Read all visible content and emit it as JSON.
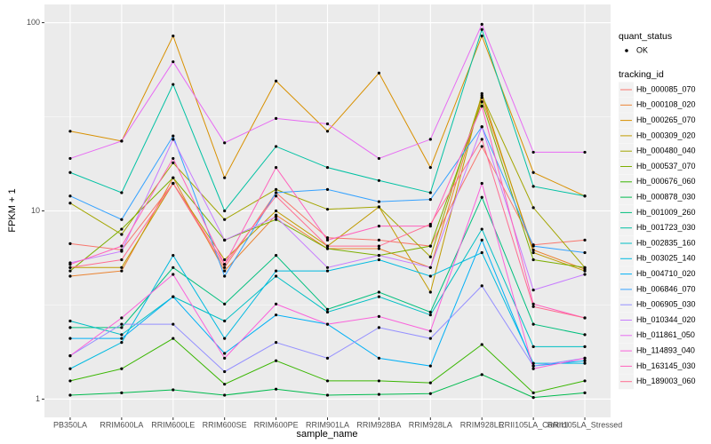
{
  "chart_data": {
    "type": "line",
    "x_label": "sample_name",
    "y_label": "FPKM + 1",
    "categories": [
      "PB350LA",
      "RRIM600LA",
      "RRIM600LE",
      "RRIM600SE",
      "RRIM600PE",
      "RRIM901LA",
      "RRIM928BA",
      "RRIM928LA",
      "RRIM928LE",
      "RRII105LA_Control",
      "RRII105LA_Stressed"
    ],
    "ylog": true,
    "ylim": [
      0.8,
      125
    ],
    "yticks": [
      1,
      10,
      100
    ],
    "grid": true,
    "point_color": "#000000",
    "point_legend": {
      "title": "quant_status",
      "labels": [
        "OK"
      ]
    },
    "legend_title": "tracking_id",
    "series": [
      {
        "name": "Hb_000085_070",
        "color": "#F8766D",
        "values": [
          6.7,
          6.2,
          14,
          5,
          12.5,
          7.2,
          7,
          6.5,
          22,
          6.6,
          7
        ]
      },
      {
        "name": "Hb_000108_020",
        "color": "#EA8331",
        "values": [
          4.5,
          4.8,
          15,
          4.8,
          9.5,
          6.3,
          6.3,
          5,
          40,
          6.2,
          4.9
        ]
      },
      {
        "name": "Hb_000265_070",
        "color": "#D89000",
        "values": [
          26.5,
          23.5,
          85,
          15,
          49,
          26.5,
          54,
          17,
          85,
          16,
          12
        ]
      },
      {
        "name": "Hb_000309_020",
        "color": "#C09B00",
        "values": [
          5,
          5,
          14,
          5.5,
          10,
          6.5,
          10.5,
          3.7,
          42,
          6,
          4.8
        ]
      },
      {
        "name": "Hb_000480_040",
        "color": "#A3A500",
        "values": [
          11,
          7.5,
          18,
          9,
          13,
          10.2,
          10.5,
          5.7,
          41,
          10.4,
          5
        ]
      },
      {
        "name": "Hb_000537_070",
        "color": "#7CAE00",
        "values": [
          4.8,
          8,
          15,
          7,
          9,
          6.3,
          5.8,
          6.5,
          38,
          5.5,
          5
        ]
      },
      {
        "name": "Hb_000676_060",
        "color": "#39B600",
        "values": [
          1.25,
          1.45,
          2.1,
          1.2,
          1.6,
          1.25,
          1.25,
          1.22,
          1.95,
          1.08,
          1.25
        ]
      },
      {
        "name": "Hb_000878_030",
        "color": "#00BB4E",
        "values": [
          1.05,
          1.08,
          1.12,
          1.05,
          1.13,
          1.05,
          1.06,
          1.07,
          1.35,
          1.02,
          1.08
        ]
      },
      {
        "name": "Hb_001009_260",
        "color": "#00BF7D",
        "values": [
          2.4,
          2.4,
          5,
          3.2,
          5.8,
          3,
          3.7,
          2.9,
          11.8,
          2.5,
          2.2
        ]
      },
      {
        "name": "Hb_001723_030",
        "color": "#00C1A3",
        "values": [
          16,
          12.5,
          47,
          10,
          22,
          17,
          14.5,
          12.5,
          92,
          13.5,
          12
        ]
      },
      {
        "name": "Hb_002835_160",
        "color": "#00BFC4",
        "values": [
          2.6,
          2.2,
          3.5,
          2.6,
          4.5,
          2.9,
          3.5,
          2.8,
          8,
          1.9,
          1.9
        ]
      },
      {
        "name": "Hb_003025_140",
        "color": "#00BAE0",
        "values": [
          1.45,
          2,
          5.8,
          2.1,
          4.8,
          4.8,
          5.5,
          4.5,
          6,
          1.55,
          1.55
        ]
      },
      {
        "name": "Hb_004710_020",
        "color": "#00B0F6",
        "values": [
          2.1,
          2.1,
          3.5,
          1.75,
          2.8,
          2.5,
          1.65,
          1.5,
          7,
          1.5,
          1.6
        ]
      },
      {
        "name": "Hb_006846_070",
        "color": "#35A2FF",
        "values": [
          12,
          9,
          25,
          4.5,
          12.5,
          13,
          11.2,
          11.5,
          28,
          6.5,
          6
        ]
      },
      {
        "name": "Hb_006905_030",
        "color": "#9590FF",
        "values": [
          1.7,
          2.5,
          2.5,
          1.4,
          2,
          1.65,
          2.4,
          2.1,
          4,
          1.5,
          1.65
        ]
      },
      {
        "name": "Hb_010344_020",
        "color": "#C77CFF",
        "values": [
          5.3,
          6.1,
          24,
          7,
          9.3,
          5,
          5.8,
          5,
          28,
          3.8,
          4.6
        ]
      },
      {
        "name": "Hb_011861_050",
        "color": "#E76BF3",
        "values": [
          19,
          23.5,
          62,
          23,
          31,
          29,
          19,
          24,
          98,
          20.5,
          20.5
        ]
      },
      {
        "name": "Hb_114893_040",
        "color": "#FA62DB",
        "values": [
          1.7,
          2.7,
          4.6,
          1.65,
          3.2,
          2.5,
          2.75,
          2.3,
          14,
          1.45,
          1.65
        ]
      },
      {
        "name": "Hb_163145_030",
        "color": "#FF62BC",
        "values": [
          5.2,
          6.5,
          19,
          5.2,
          17,
          7,
          8.3,
          8.3,
          36,
          3.2,
          2.7
        ]
      },
      {
        "name": "Hb_189003_060",
        "color": "#FF6C91",
        "values": [
          5,
          5.5,
          14,
          5.2,
          12,
          6.5,
          6.5,
          8.5,
          24,
          3.1,
          2.7
        ]
      }
    ]
  }
}
